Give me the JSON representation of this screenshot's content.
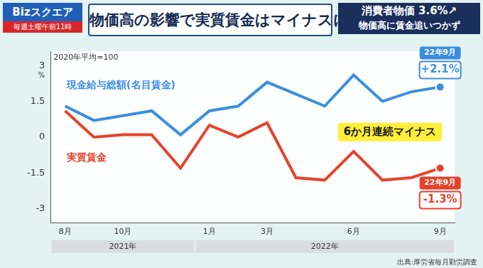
{
  "header": {
    "logo": "Bizスクエア",
    "schedule": "毎週土曜午前11時",
    "title": "物価高の影響で実質賃金はマイナスに",
    "headline": "消費者物価 3.6%↗",
    "subheadline": "物価高に賃金追いつかず"
  },
  "chart_data": {
    "type": "line",
    "subtitle": "2020年平均=100",
    "y_unit": "%",
    "categories": [
      "8月",
      null,
      "10月",
      null,
      null,
      "1月",
      null,
      "3月",
      null,
      null,
      "6月",
      null,
      null,
      "9月"
    ],
    "year_bands": [
      {
        "label": "2021年",
        "from": 0,
        "to": 4
      },
      {
        "label": "2022年",
        "from": 5,
        "to": 13
      }
    ],
    "series": [
      {
        "name": "現金給与総額(名目賃金)",
        "color": "#3a8ee0",
        "marker": "last",
        "values": [
          1.3,
          0.7,
          0.9,
          1.1,
          0.1,
          1.1,
          1.3,
          2.3,
          1.8,
          1.3,
          2.6,
          1.5,
          1.9,
          2.1
        ]
      },
      {
        "name": "実質賃金",
        "color": "#e8412b",
        "marker": "last",
        "values": [
          1.1,
          0.0,
          0.1,
          0.1,
          -1.3,
          0.5,
          0.0,
          0.6,
          -1.7,
          -1.8,
          -0.6,
          -1.8,
          -1.7,
          -1.3
        ]
      }
    ],
    "ylim": [
      -3.6,
      3.6
    ],
    "yticks": [
      3,
      1.5,
      0,
      -1.5,
      -3
    ],
    "grid": false,
    "annotations": [
      {
        "text": "6か月連続マイナス"
      }
    ],
    "callouts": [
      {
        "series": 0,
        "date": "22年9月",
        "value": 2.1,
        "label": "+2.1%"
      },
      {
        "series": 1,
        "date": "22年9月",
        "value": -1.3,
        "label": "-1.3%"
      }
    ],
    "source": "出典:厚労省毎月勤労調査"
  }
}
